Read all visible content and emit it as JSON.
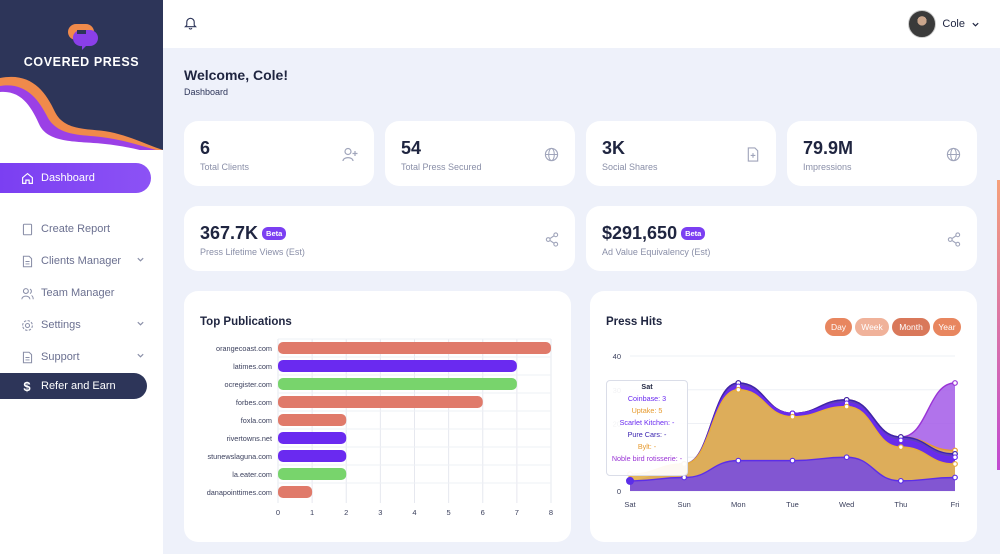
{
  "brand": {
    "name": "COVERED PRESS"
  },
  "sidebar": {
    "items": [
      {
        "label": "Dashboard",
        "icon": "home-icon"
      },
      {
        "label": "Create Report",
        "icon": "document-icon"
      },
      {
        "label": "Clients Manager",
        "icon": "file-icon"
      },
      {
        "label": "Team Manager",
        "icon": "users-icon"
      },
      {
        "label": "Settings",
        "icon": "gear-icon"
      },
      {
        "label": "Support",
        "icon": "file-icon"
      },
      {
        "label": "Refer and Earn",
        "icon": "dollar-icon"
      }
    ]
  },
  "header": {
    "user_name": "Cole"
  },
  "welcome": {
    "title": "Welcome, Cole!",
    "breadcrumb": "Dashboard"
  },
  "stats": [
    {
      "value": "6",
      "label": "Total Clients",
      "icon": "add-user-icon"
    },
    {
      "value": "54",
      "label": "Total Press Secured",
      "icon": "globe-icon"
    },
    {
      "value": "3K",
      "label": "Social Shares",
      "icon": "file-plus-icon"
    },
    {
      "value": "79.9M",
      "label": "Impressions",
      "icon": "globe-icon"
    },
    {
      "value": "367.7K",
      "badge": "Beta",
      "label": "Press Lifetime Views (Est)",
      "icon": "share-icon"
    },
    {
      "value": "$291,650",
      "badge": "Beta",
      "label": "Ad Value Equivalency (Est)",
      "icon": "share-icon"
    }
  ],
  "top_publications": {
    "title": "Top Publications",
    "chart_data": {
      "type": "bar",
      "orientation": "horizontal",
      "categories": [
        "orangecoast.com",
        "latimes.com",
        "ocregister.com",
        "forbes.com",
        "foxla.com",
        "rivertowns.net",
        "stunewslaguna.com",
        "la.eater.com",
        "danapointtimes.com"
      ],
      "values": [
        8,
        7,
        7,
        6,
        2,
        2,
        2,
        2,
        1
      ],
      "colors": [
        "#e07a6a",
        "#6a2af0",
        "#78d46c",
        "#e07a6a",
        "#e07a6a",
        "#6a2af0",
        "#6a2af0",
        "#78d46c",
        "#e07a6a"
      ],
      "xticks": [
        "0",
        "1",
        "2",
        "3",
        "4",
        "5",
        "6",
        "7",
        "8"
      ],
      "xlim": [
        0,
        8
      ],
      "grid": true
    }
  },
  "press_hits": {
    "title": "Press Hits",
    "timeframes": [
      {
        "label": "Day",
        "color": "#e8865f"
      },
      {
        "label": "Week",
        "color": "#f0b29a"
      },
      {
        "label": "Month",
        "color": "#d9785a"
      },
      {
        "label": "Year",
        "color": "#e8865f"
      }
    ],
    "tooltip": {
      "title": "Sat",
      "lines": [
        {
          "text": "Coinbase: 3",
          "color": "#6a2af0"
        },
        {
          "text": "Uptake: 5",
          "color": "#e69a2e"
        },
        {
          "text": "Scarlet Kitchen: -",
          "color": "#6a2af0"
        },
        {
          "text": "Pure Cars: -",
          "color": "#3a23b0"
        },
        {
          "text": "Bylt: -",
          "color": "#e69a2e"
        },
        {
          "text": "Noble bird rotisserie: -",
          "color": "#9a34d6"
        }
      ]
    },
    "chart_data": {
      "type": "area",
      "x": [
        "Sat",
        "Sun",
        "Mon",
        "Tue",
        "Wed",
        "Thu",
        "Fri"
      ],
      "yticks": [
        "40",
        "30",
        "20",
        "10",
        "0"
      ],
      "ylim": [
        0,
        40
      ],
      "series": [
        {
          "name": "Coinbase",
          "color": "#5c2ee8",
          "values": [
            3,
            4,
            9,
            9,
            10,
            3,
            4
          ]
        },
        {
          "name": "Uptake",
          "color": "#e6ac3c",
          "values": [
            5,
            8,
            30,
            22,
            25,
            13,
            8
          ]
        },
        {
          "name": "Scarlet Kitchen",
          "color": "#6a2af0",
          "values": [
            3,
            8,
            31,
            23,
            26,
            15,
            10
          ]
        },
        {
          "name": "Pure Cars",
          "color": "#3a23b0",
          "values": [
            3,
            8,
            32,
            23,
            27,
            16,
            11
          ]
        },
        {
          "name": "Bylt",
          "color": "#e69a2e",
          "values": [
            3,
            8,
            32,
            23,
            27,
            16,
            12
          ]
        },
        {
          "name": "Noble bird rotisserie",
          "color": "#9a34d6",
          "values": [
            3,
            8,
            32,
            23,
            27,
            16,
            32
          ]
        }
      ],
      "grid": true
    }
  }
}
